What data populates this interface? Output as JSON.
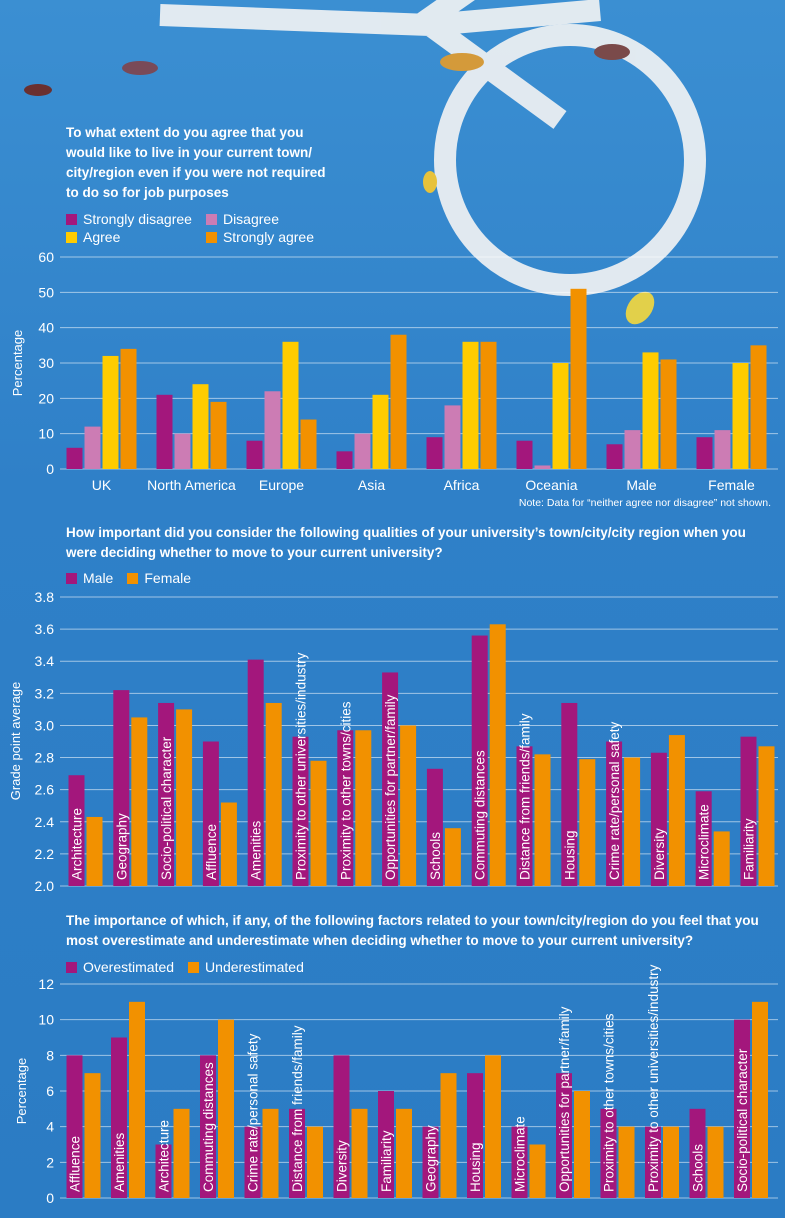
{
  "colors": {
    "strongly_disagree": "#a3177c",
    "disagree": "#cc7cb4",
    "agree": "#ffcc00",
    "strongly_agree": "#f29100",
    "male": "#a3177c",
    "female": "#f29100",
    "background": "#2f80c8"
  },
  "chart_data": [
    {
      "type": "bar",
      "title": "To what extent do you agree that you would like to live in your current town/ city/region even if you were not required to do so for job purposes",
      "ylabel": "Percentage",
      "xlabel": "",
      "ylim": [
        0,
        60
      ],
      "yticks": [
        0,
        10,
        20,
        30,
        40,
        50,
        60
      ],
      "grid": true,
      "legend": "top-left",
      "note": "Note: Data for “neither agree nor disagree” not shown.",
      "categories": [
        "UK",
        "North America",
        "Europe",
        "Asia",
        "Africa",
        "Oceania",
        "Male",
        "Female"
      ],
      "series": [
        {
          "name": "Strongly disagree",
          "values": [
            6,
            21,
            8,
            5,
            9,
            8,
            7,
            9
          ]
        },
        {
          "name": "Disagree",
          "values": [
            12,
            10,
            22,
            10,
            18,
            1,
            11,
            11
          ]
        },
        {
          "name": "Agree",
          "values": [
            32,
            24,
            36,
            21,
            36,
            30,
            33,
            30
          ]
        },
        {
          "name": "Strongly agree",
          "values": [
            34,
            19,
            14,
            38,
            36,
            51,
            31,
            35
          ]
        }
      ]
    },
    {
      "type": "bar",
      "title": "How important did you consider the following qualities of your university’s town/city/city region when you were deciding whether to move to your current university?",
      "ylabel": "Grade point average",
      "xlabel": "",
      "ylim": [
        2.0,
        3.8
      ],
      "yticks": [
        "2.0",
        "2.2",
        "2.4",
        "2.6",
        "2.8",
        "3.0",
        "3.2",
        "3.4",
        "3.6",
        "3.8"
      ],
      "grid": true,
      "legend": "top-left",
      "categories": [
        "Architecture",
        "Geography",
        "Socio-political character",
        "Affluence",
        "Amenities",
        "Proximity to other universities/industry",
        "Proximity to other towns/cities",
        "Opportunities for partner/family",
        "Schools",
        "Commuting distances",
        "Distance from friends/family",
        "Housing",
        "Crime rate/personal safety",
        "Diversity",
        "Microclimate",
        "Familiarity"
      ],
      "series": [
        {
          "name": "Male",
          "values": [
            2.69,
            3.22,
            3.14,
            2.9,
            3.41,
            2.93,
            2.97,
            3.33,
            2.73,
            3.56,
            2.87,
            3.14,
            2.9,
            2.83,
            2.59,
            2.93
          ]
        },
        {
          "name": "Female",
          "values": [
            2.43,
            3.05,
            3.1,
            2.52,
            3.14,
            2.78,
            2.97,
            3.0,
            2.36,
            3.63,
            2.82,
            2.79,
            2.8,
            2.94,
            2.34,
            2.87
          ]
        }
      ]
    },
    {
      "type": "bar",
      "title": "The importance of which, if any, of the following factors related to your town/city/region do you feel that you most overestimate and underestimate when deciding whether to move to your current university?",
      "ylabel": "Percentage",
      "xlabel": "",
      "ylim": [
        0,
        12
      ],
      "yticks": [
        0,
        2,
        4,
        6,
        8,
        10,
        12
      ],
      "grid": true,
      "legend": "top-left",
      "categories": [
        "Affluence",
        "Amenities",
        "Architecture",
        "Commuting distances",
        "Crime rate/personal safety",
        "Distance from friends/family",
        "Diversity",
        "Familiarity",
        "Geography",
        "Housing",
        "Microclimate",
        "Opportunities for partner/family",
        "Proximity to other towns/cities",
        "Proximity to other universities/industry",
        "Schools",
        "Socio-political character"
      ],
      "series": [
        {
          "name": "Overestimated",
          "values": [
            8,
            9,
            3,
            8,
            4,
            5,
            8,
            6,
            4,
            7,
            4,
            7,
            5,
            4,
            5,
            10
          ]
        },
        {
          "name": "Underestimated",
          "values": [
            7,
            11,
            5,
            10,
            5,
            4,
            5,
            5,
            7,
            8,
            3,
            6,
            4,
            4,
            4,
            11
          ]
        }
      ]
    }
  ]
}
